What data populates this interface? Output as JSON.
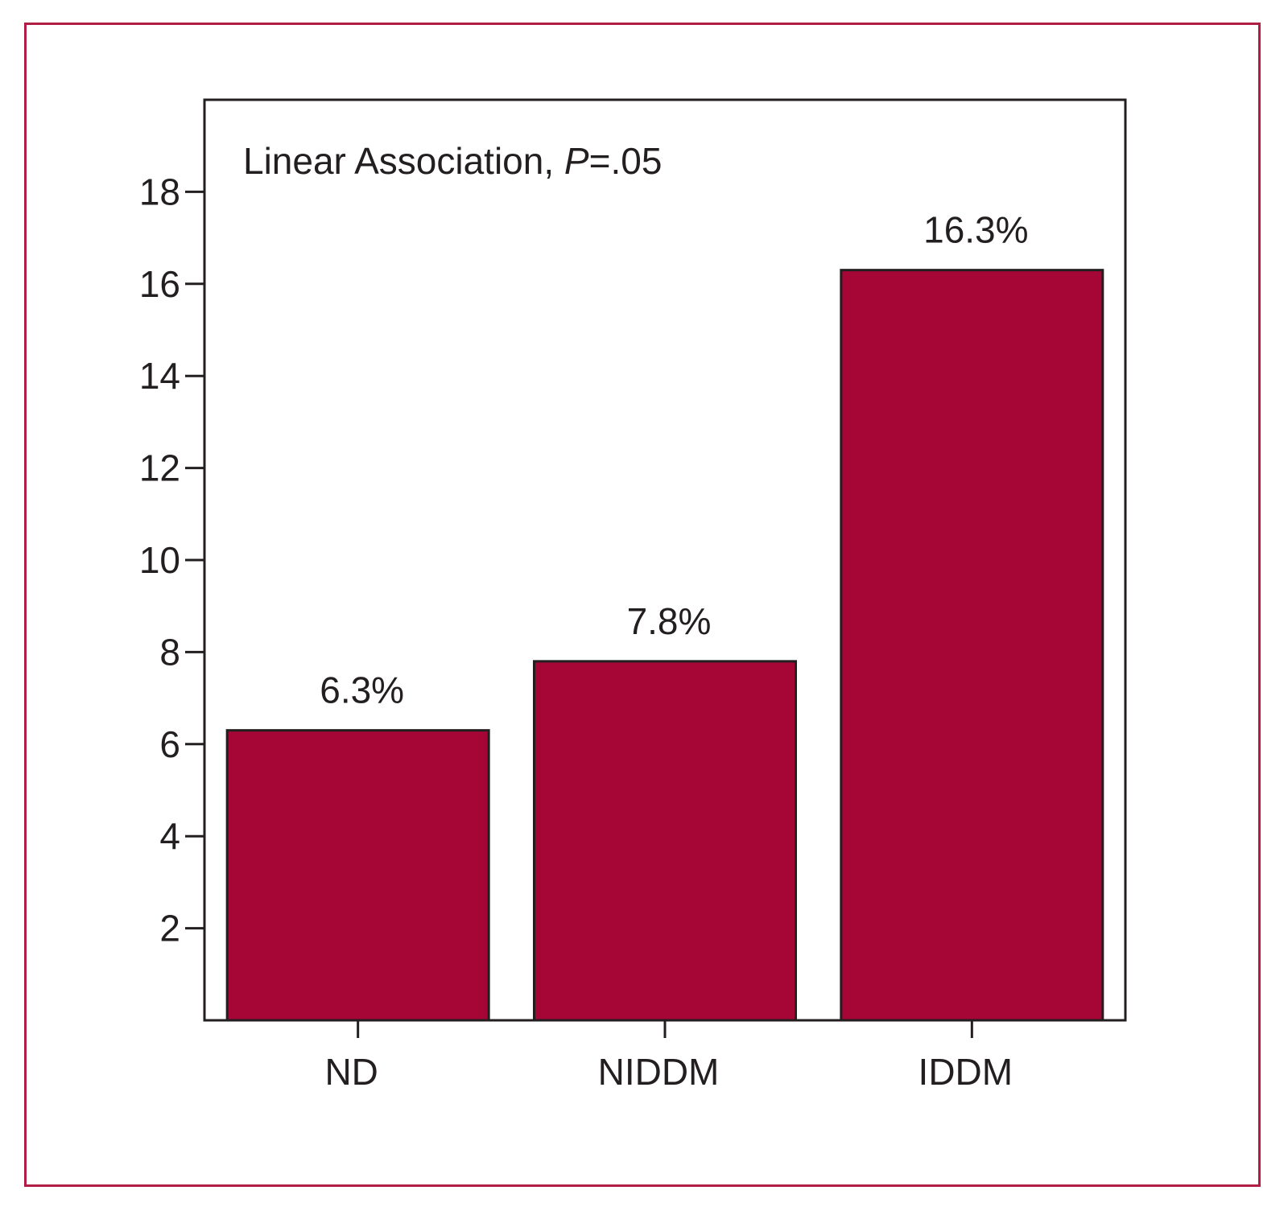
{
  "chart_data": {
    "type": "bar",
    "categories": [
      "ND",
      "NIDDM",
      "IDDM"
    ],
    "values": [
      6.3,
      7.8,
      16.3
    ],
    "data_labels": [
      "6.3%",
      "7.8%",
      "16.3%"
    ],
    "title": "",
    "xlabel": "",
    "ylabel": "",
    "ylim": [
      0,
      20
    ],
    "yticks": [
      2,
      4,
      6,
      8,
      10,
      12,
      14,
      16,
      18
    ],
    "ytick_labels": [
      "2",
      "4",
      "6",
      "8",
      "10",
      "12",
      "14",
      "16",
      "18"
    ],
    "grid": false,
    "annotation": {
      "prefix": "Linear Association, ",
      "italic": "P",
      "suffix": "=.05"
    },
    "bar_color": "#a50636",
    "frame_color": "#b01e44",
    "axis_color": "#231f20"
  }
}
